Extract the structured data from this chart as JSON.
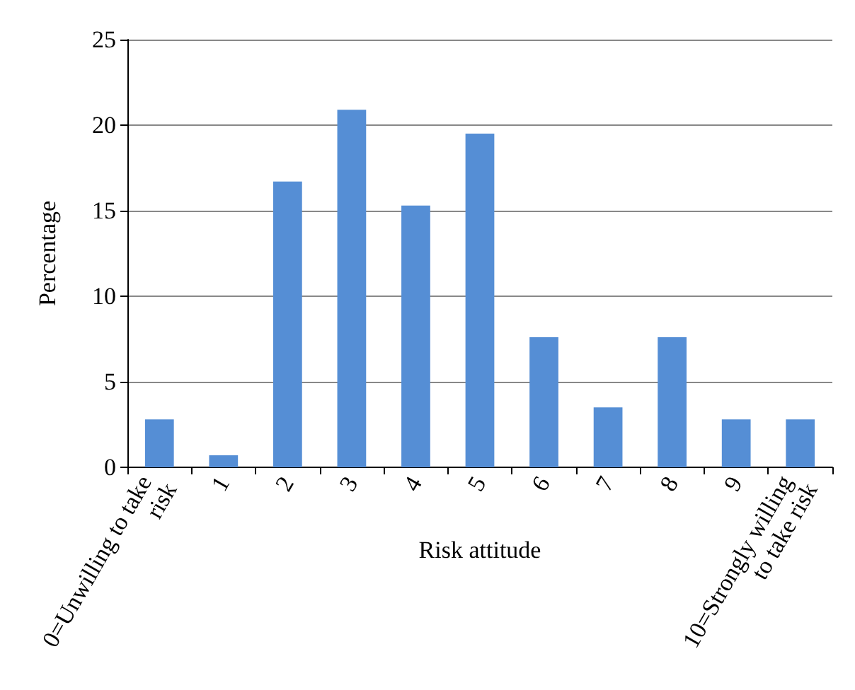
{
  "chart_data": {
    "type": "bar",
    "xlabel": "Risk attitude",
    "ylabel": "Percentage",
    "categories": [
      "0=Unwilling to take risk",
      "1",
      "2",
      "3",
      "4",
      "5",
      "6",
      "7",
      "8",
      "9",
      "10=Strongly willing to take risk"
    ],
    "values": [
      2.8,
      0.7,
      16.7,
      20.9,
      15.3,
      19.5,
      7.6,
      3.5,
      7.6,
      2.8,
      2.8
    ],
    "color": "#558ed5",
    "ylim": [
      0,
      25
    ],
    "yticks": [
      0,
      5,
      10,
      15,
      20,
      25
    ],
    "grid": "y"
  }
}
